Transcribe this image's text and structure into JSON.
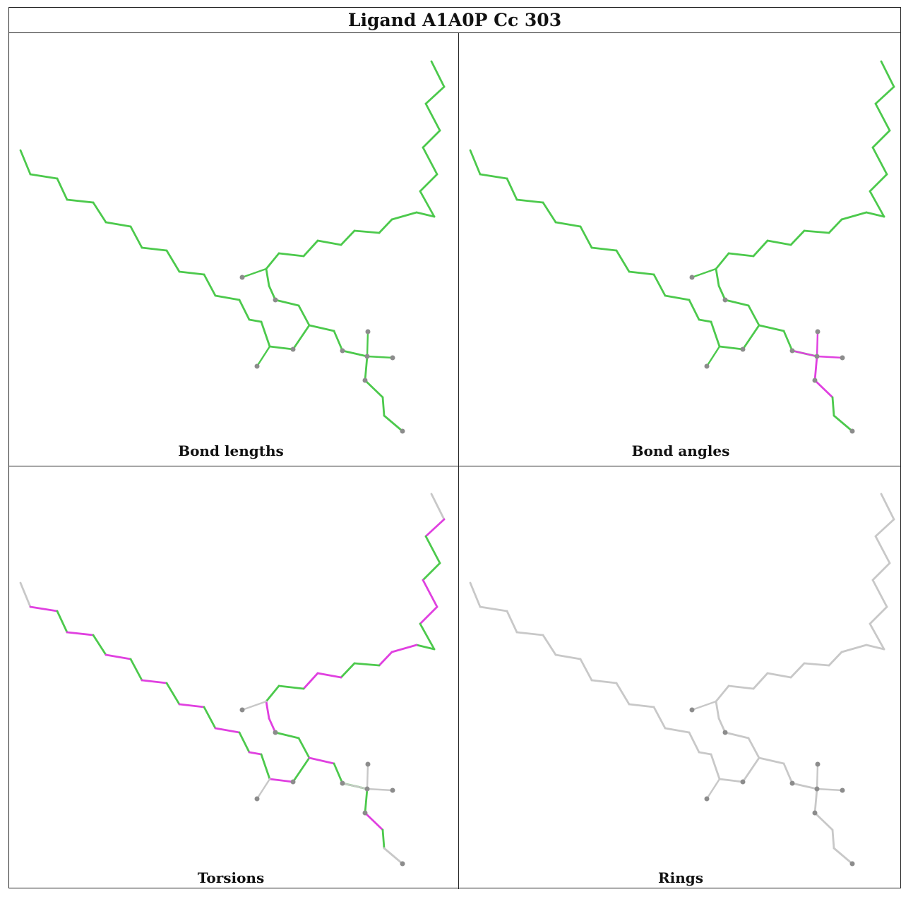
{
  "title": "Ligand A1A0P Cc 303",
  "colors": {
    "ok": "#4cc94c",
    "outlier": "#e040e0",
    "none": "#c8c8c8",
    "atom": "#8c8c8c"
  },
  "panels": [
    {
      "id": "bond-lengths",
      "caption": "Bond lengths"
    },
    {
      "id": "bond-angles",
      "caption": "Bond angles"
    },
    {
      "id": "torsions",
      "caption": "Torsions"
    },
    {
      "id": "rings",
      "caption": "Rings"
    }
  ]
}
